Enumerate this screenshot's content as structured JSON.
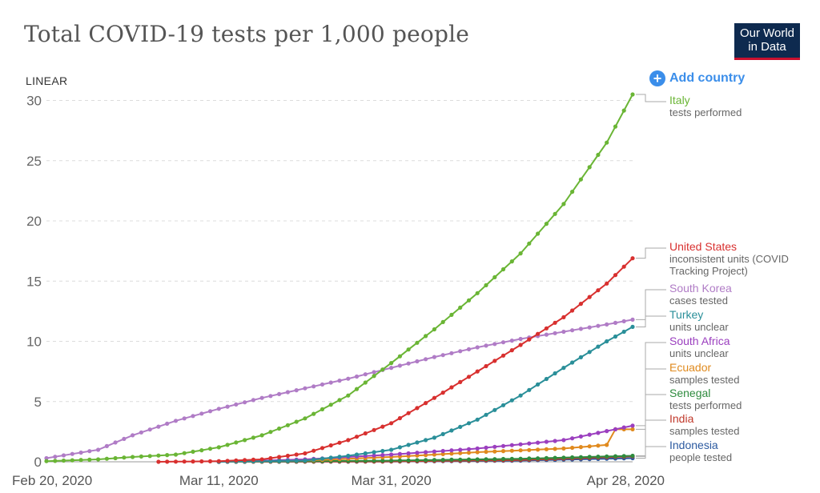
{
  "header": {
    "title": "Total COVID-19 tests per 1,000 people",
    "logo_line1": "Our World",
    "logo_line2": "in Data",
    "scale_toggle": "LINEAR",
    "add_country_label": "Add country",
    "add_country_icon": "plus-circle-icon"
  },
  "chart_data": {
    "type": "line",
    "title": "Total COVID-19 tests per 1,000 people",
    "xlabel": "",
    "ylabel": "",
    "ylim": [
      0,
      30.5
    ],
    "yticks": [
      "0",
      "5",
      "10",
      "15",
      "20",
      "25",
      "30"
    ],
    "xticks": [
      "Feb 20, 2020",
      "Mar 11, 2020",
      "Mar 31, 2020",
      "Apr 28, 2020"
    ],
    "grid": "horizontal dashed",
    "series": [
      {
        "name": "Italy",
        "unit": "tests performed",
        "color": "#6ab535",
        "points": [
          [
            "Feb 20, 2020",
            0.05
          ],
          [
            "Feb 26, 2020",
            0.2
          ],
          [
            "Mar 1, 2020",
            0.4
          ],
          [
            "Mar 6, 2020",
            0.6
          ],
          [
            "Mar 11, 2020",
            1.2
          ],
          [
            "Mar 16, 2020",
            2.2
          ],
          [
            "Mar 21, 2020",
            3.6
          ],
          [
            "Mar 26, 2020",
            5.5
          ],
          [
            "Mar 31, 2020",
            8.2
          ],
          [
            "Apr 5, 2020",
            11.0
          ],
          [
            "Apr 10, 2020",
            14.0
          ],
          [
            "Apr 15, 2020",
            17.3
          ],
          [
            "Apr 20, 2020",
            21.4
          ],
          [
            "Apr 25, 2020",
            26.5
          ],
          [
            "Apr 28, 2020",
            30.5
          ]
        ]
      },
      {
        "name": "United States",
        "unit": "inconsistent units (COVID Tracking Project)",
        "color": "#d8302f",
        "points": [
          [
            "Mar 4, 2020",
            0.0
          ],
          [
            "Mar 11, 2020",
            0.05
          ],
          [
            "Mar 16, 2020",
            0.2
          ],
          [
            "Mar 21, 2020",
            0.7
          ],
          [
            "Mar 26, 2020",
            1.8
          ],
          [
            "Mar 31, 2020",
            3.2
          ],
          [
            "Apr 5, 2020",
            5.3
          ],
          [
            "Apr 10, 2020",
            7.5
          ],
          [
            "Apr 15, 2020",
            9.7
          ],
          [
            "Apr 20, 2020",
            12.0
          ],
          [
            "Apr 25, 2020",
            14.8
          ],
          [
            "Apr 28, 2020",
            16.9
          ]
        ]
      },
      {
        "name": "South Korea",
        "unit": "cases tested",
        "color": "#b07cc6",
        "points": [
          [
            "Feb 20, 2020",
            0.3
          ],
          [
            "Feb 26, 2020",
            1.0
          ],
          [
            "Mar 1, 2020",
            2.2
          ],
          [
            "Mar 6, 2020",
            3.4
          ],
          [
            "Mar 11, 2020",
            4.4
          ],
          [
            "Mar 16, 2020",
            5.3
          ],
          [
            "Mar 21, 2020",
            6.1
          ],
          [
            "Mar 26, 2020",
            6.9
          ],
          [
            "Mar 31, 2020",
            7.8
          ],
          [
            "Apr 5, 2020",
            8.7
          ],
          [
            "Apr 10, 2020",
            9.5
          ],
          [
            "Apr 15, 2020",
            10.2
          ],
          [
            "Apr 20, 2020",
            10.8
          ],
          [
            "Apr 25, 2020",
            11.4
          ],
          [
            "Apr 28, 2020",
            11.8
          ]
        ]
      },
      {
        "name": "Turkey",
        "unit": "units unclear",
        "color": "#2a8f99",
        "points": [
          [
            "Mar 11, 2020",
            0.0
          ],
          [
            "Mar 21, 2020",
            0.1
          ],
          [
            "Mar 26, 2020",
            0.5
          ],
          [
            "Mar 31, 2020",
            1.0
          ],
          [
            "Apr 5, 2020",
            2.0
          ],
          [
            "Apr 10, 2020",
            3.5
          ],
          [
            "Apr 15, 2020",
            5.5
          ],
          [
            "Apr 20, 2020",
            7.8
          ],
          [
            "Apr 25, 2020",
            10.0
          ],
          [
            "Apr 28, 2020",
            11.2
          ]
        ]
      },
      {
        "name": "South Africa",
        "unit": "units unclear",
        "color": "#9b3fbf",
        "points": [
          [
            "Mar 11, 2020",
            0.0
          ],
          [
            "Mar 21, 2020",
            0.2
          ],
          [
            "Mar 31, 2020",
            0.6
          ],
          [
            "Apr 10, 2020",
            1.1
          ],
          [
            "Apr 20, 2020",
            1.8
          ],
          [
            "Apr 28, 2020",
            3.0
          ]
        ]
      },
      {
        "name": "Ecuador",
        "unit": "samples tested",
        "color": "#e08a1e",
        "points": [
          [
            "Mar 11, 2020",
            0.0
          ],
          [
            "Mar 21, 2020",
            0.1
          ],
          [
            "Mar 31, 2020",
            0.4
          ],
          [
            "Apr 10, 2020",
            0.8
          ],
          [
            "Apr 20, 2020",
            1.1
          ],
          [
            "Apr 25, 2020",
            1.4
          ],
          [
            "Apr 26, 2020",
            2.7
          ],
          [
            "Apr 28, 2020",
            2.7
          ]
        ]
      },
      {
        "name": "Senegal",
        "unit": "tests performed",
        "color": "#2e8b3e",
        "points": [
          [
            "Mar 11, 2020",
            0.0
          ],
          [
            "Mar 31, 2020",
            0.1
          ],
          [
            "Apr 15, 2020",
            0.25
          ],
          [
            "Apr 28, 2020",
            0.5
          ]
        ]
      },
      {
        "name": "India",
        "unit": "samples tested",
        "color": "#c0392b",
        "points": [
          [
            "Mar 11, 2020",
            0.0
          ],
          [
            "Mar 31, 2020",
            0.03
          ],
          [
            "Apr 15, 2020",
            0.15
          ],
          [
            "Apr 28, 2020",
            0.45
          ]
        ]
      },
      {
        "name": "Indonesia",
        "unit": "people tested",
        "color": "#2c5aa0",
        "points": [
          [
            "Mar 11, 2020",
            0.0
          ],
          [
            "Mar 31, 2020",
            0.02
          ],
          [
            "Apr 15, 2020",
            0.1
          ],
          [
            "Apr 28, 2020",
            0.3
          ]
        ]
      }
    ]
  }
}
